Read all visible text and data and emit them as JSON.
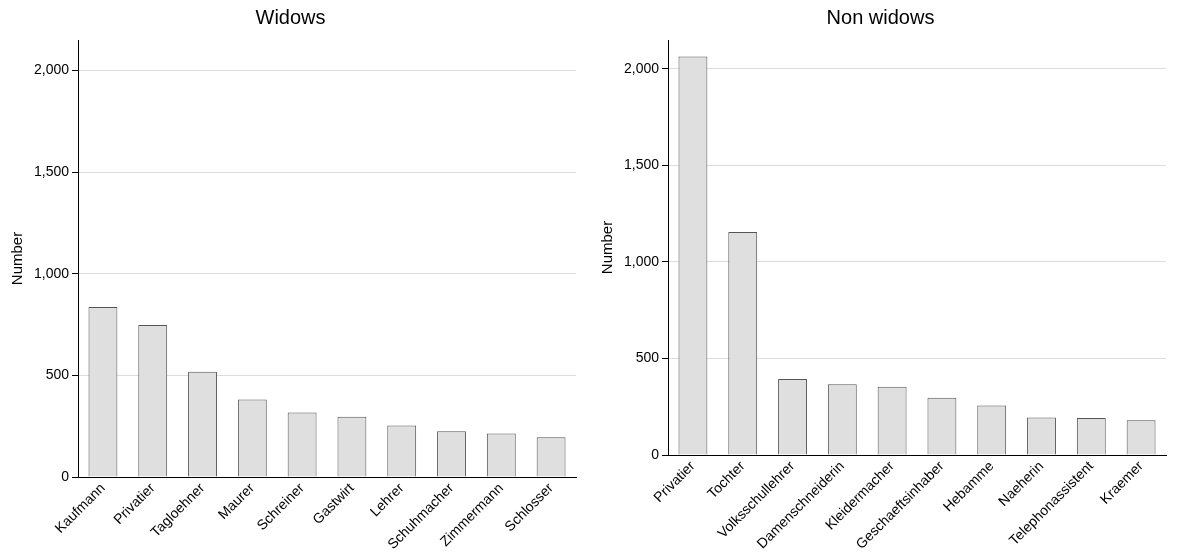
{
  "chart_data": [
    {
      "type": "bar",
      "title": "Widows",
      "ylabel": "Number",
      "categories": [
        "Kaufmann",
        "Privatier",
        "Tagloehner",
        "Maurer",
        "Schreiner",
        "Gastwirt",
        "Lehrer",
        "Schuhmacher",
        "Zimmermann",
        "Schlosser"
      ],
      "values": [
        837,
        748,
        518,
        381,
        317,
        297,
        253,
        225,
        214,
        196
      ],
      "color": "#dfdfdf",
      "ylim": [
        0,
        2150
      ],
      "yticks": [
        0,
        {
          "value": 500,
          "label": "500"
        },
        {
          "value": 1000,
          "label": "1,000"
        },
        {
          "value": 1500,
          "label": "1,500"
        },
        {
          "value": 2000,
          "label": "2,000"
        }
      ],
      "grid": "y",
      "legend": false
    },
    {
      "type": "bar",
      "title": "Non widows",
      "ylabel": "Number",
      "categories": [
        "Privatier",
        "Tochter",
        "Volksschullehrer",
        "Damenschneiderin",
        "Kleidermacher",
        "Geschaeftsinhaber",
        "Hebamme",
        "Naeherin",
        "Telephonassistent",
        "Kraemer"
      ],
      "values": [
        2065,
        1155,
        394,
        366,
        354,
        297,
        257,
        194,
        192,
        180
      ],
      "color": "#dfdfdf",
      "ylim": [
        0,
        2150
      ],
      "yticks": [
        0,
        {
          "value": 500,
          "label": "500"
        },
        {
          "value": 1000,
          "label": "1,000"
        },
        {
          "value": 1500,
          "label": "1,500"
        },
        {
          "value": 2000,
          "label": "2,000"
        }
      ],
      "grid": "y",
      "legend": false
    }
  ]
}
